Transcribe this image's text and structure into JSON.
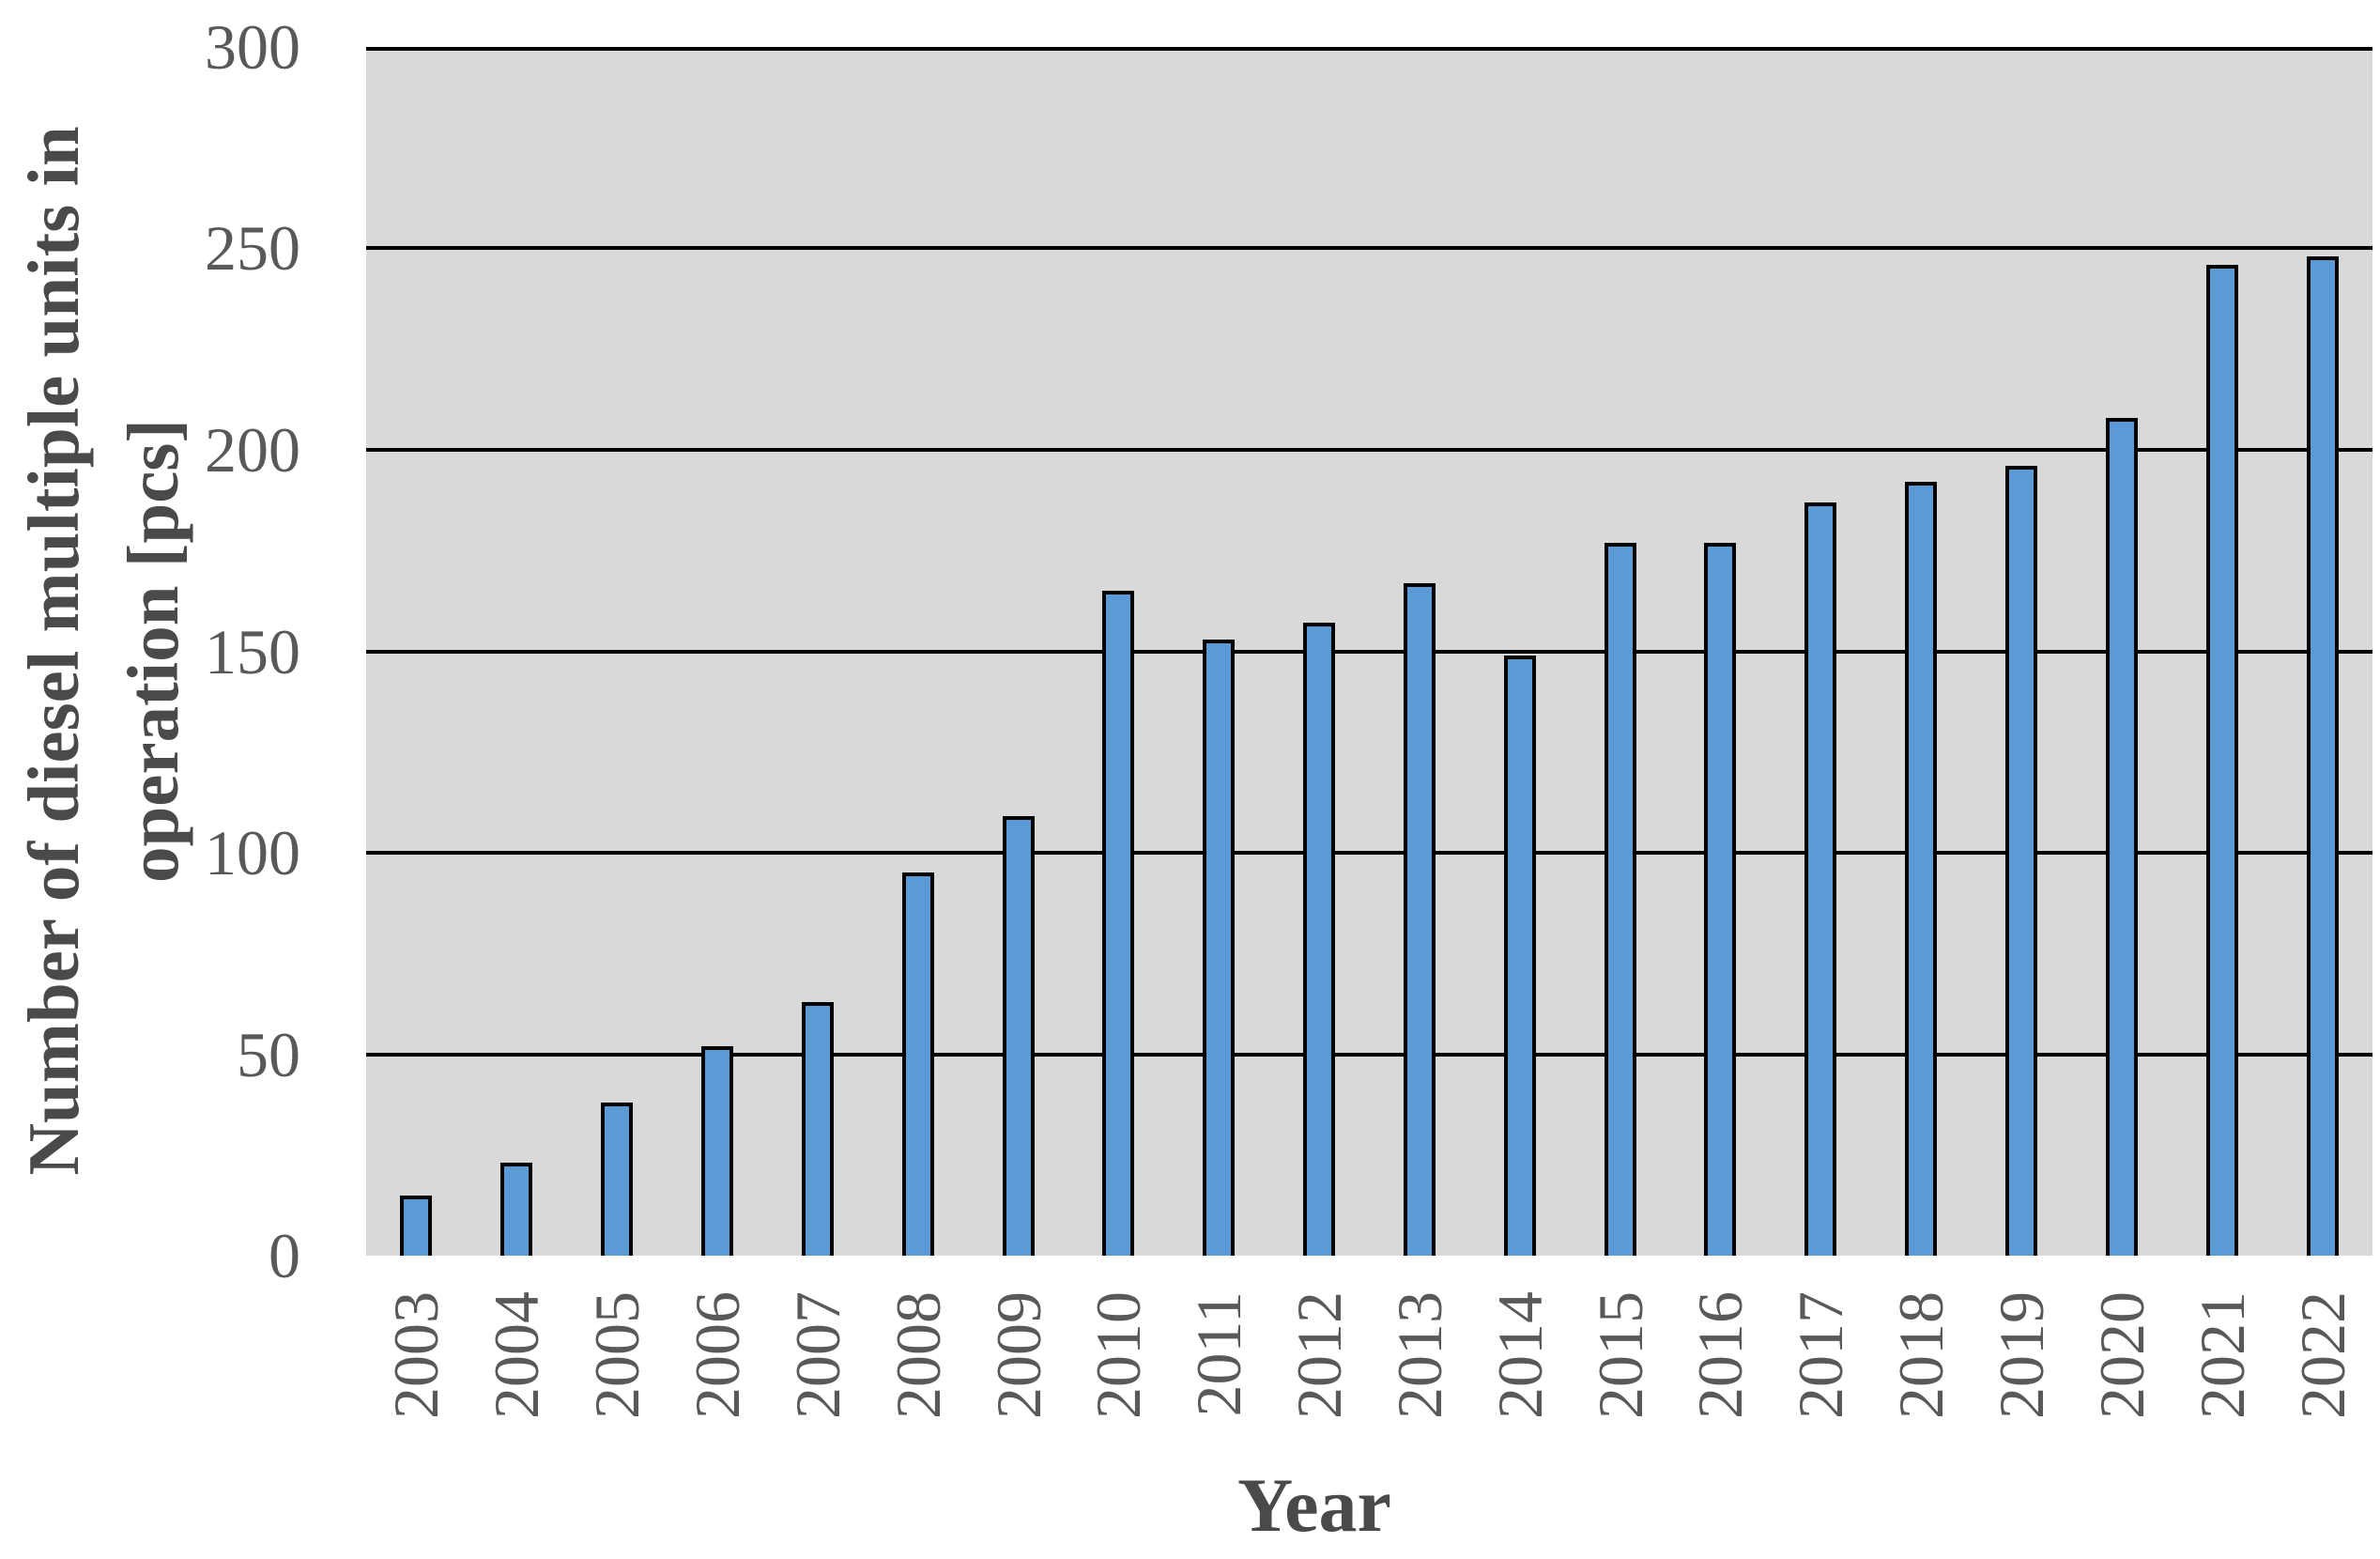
{
  "chart_data": {
    "type": "bar",
    "title": "",
    "xlabel": "Year",
    "ylabel": "Number of diesel multiple units in operation [pcs]",
    "ylabel_lines": [
      "Number of diesel multiple units in",
      "operation [pcs]"
    ],
    "categories": [
      "2003",
      "2004",
      "2005",
      "2006",
      "2007",
      "2008",
      "2009",
      "2010",
      "2011",
      "2012",
      "2013",
      "2014",
      "2015",
      "2016",
      "2017",
      "2018",
      "2019",
      "2020",
      "2021",
      "2022"
    ],
    "values": [
      15,
      23,
      38,
      52,
      63,
      95,
      109,
      165,
      153,
      157,
      167,
      149,
      177,
      177,
      187,
      192,
      196,
      208,
      246,
      248
    ],
    "ylim": [
      0,
      300
    ],
    "yticks": [
      0,
      50,
      100,
      150,
      200,
      250,
      300
    ],
    "grid": true,
    "legend": false,
    "x_tick_rotation_deg": -90,
    "style": {
      "bar_fill": "#5B9BD5",
      "bar_border": "#000000",
      "plot_background": "#D9D9D9",
      "gridline_color": "#000000",
      "tick_label_color": "#595959",
      "axis_title_color": "#4A4A4A",
      "canvas_background": "#FFFFFF"
    }
  }
}
